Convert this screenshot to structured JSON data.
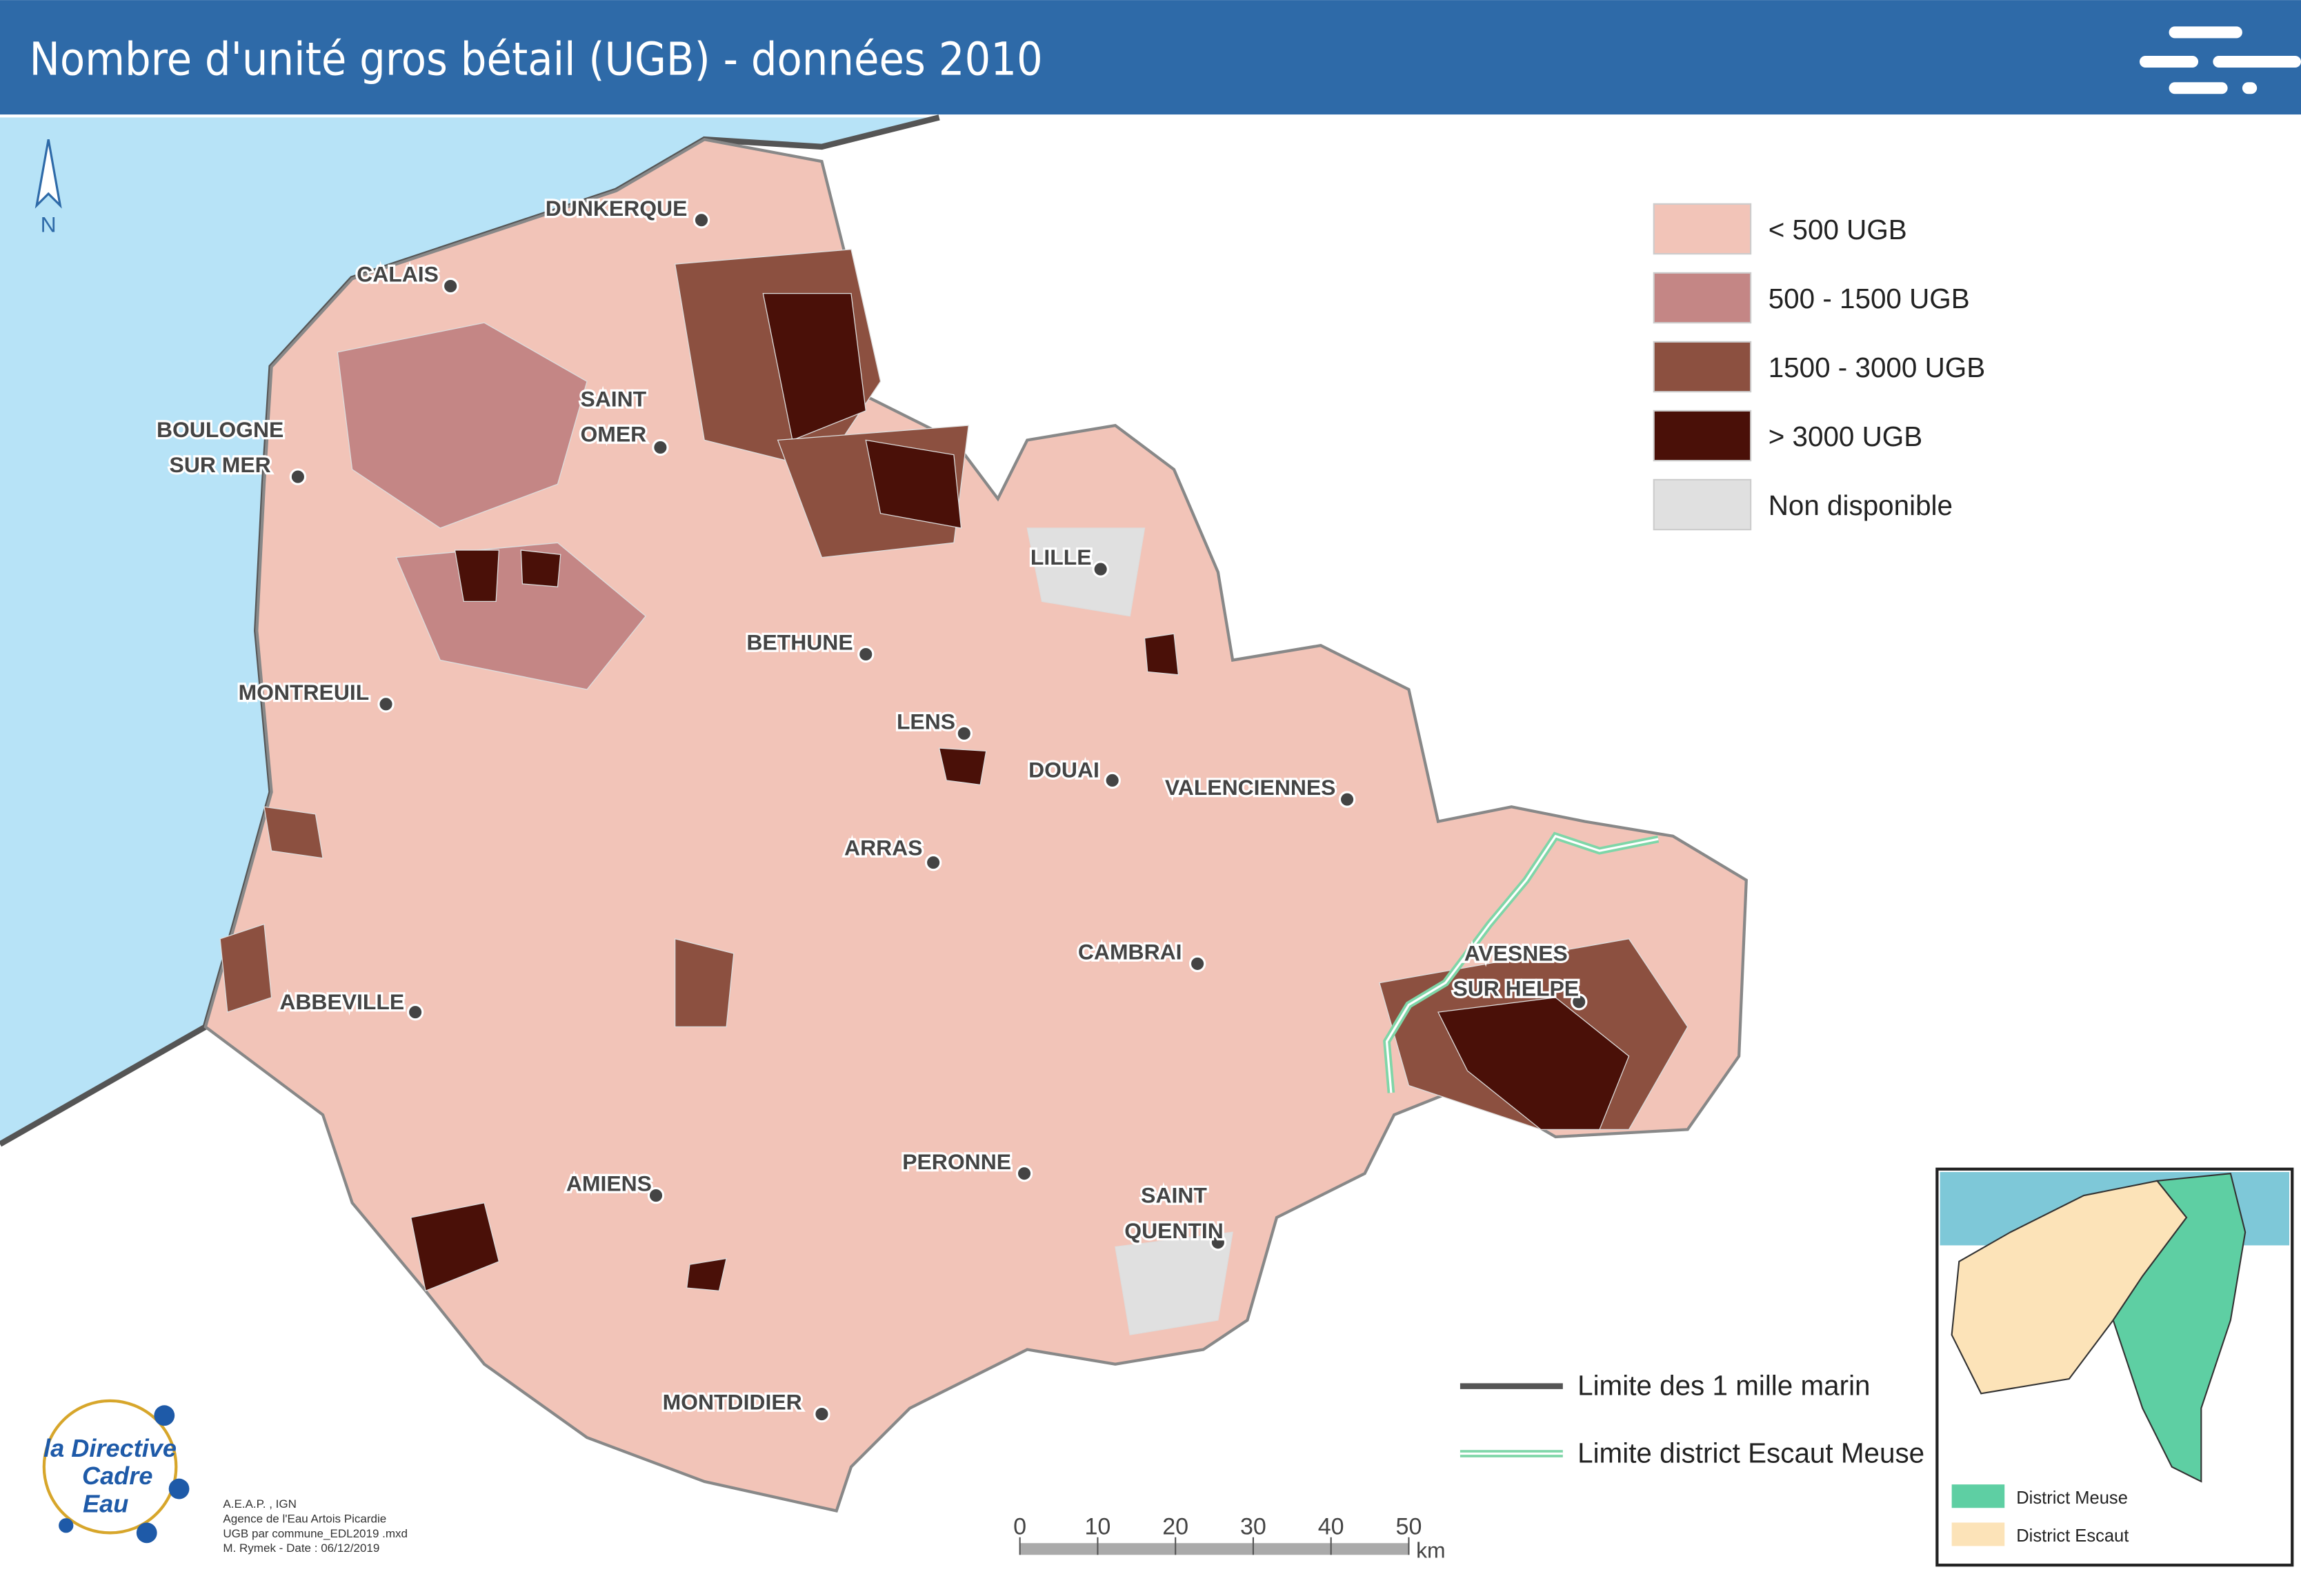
{
  "header": {
    "title": "Nombre d'unité gros bétail (UGB) - données 2010"
  },
  "north": "N",
  "legend": {
    "items": [
      "< 500 UGB",
      "500 - 1500 UGB",
      "1500 - 3000 UGB",
      "> 3000 UGB",
      "Non disponible"
    ],
    "colors": [
      "#f2c4b8",
      "#c48685",
      "#8c5040",
      "#4a1008",
      "#e0e0e0"
    ]
  },
  "cities": [
    [
      "DUNKERQUE"
    ],
    [
      "CALAIS"
    ],
    [
      "SAINT",
      "OMER"
    ],
    [
      "BOULOGNE",
      "SUR MER"
    ],
    [
      "LILLE"
    ],
    [
      "BETHUNE"
    ],
    [
      "MONTREUIL"
    ],
    [
      "LENS"
    ],
    [
      "DOUAI"
    ],
    [
      "VALENCIENNES"
    ],
    [
      "ARRAS"
    ],
    [
      "CAMBRAI"
    ],
    [
      "AVESNES",
      "SUR HELPE"
    ],
    [
      "ABBEVILLE"
    ],
    [
      "PERONNE"
    ],
    [
      "AMIENS"
    ],
    [
      "SAINT",
      "QUENTIN"
    ],
    [
      "MONTDIDIER"
    ]
  ],
  "lines_legend": [
    "Limite des 1 mille marin",
    "Limite district Escaut Meuse"
  ],
  "scalebar": {
    "ticks": [
      0,
      10,
      20,
      30,
      40,
      50
    ],
    "unit": "km"
  },
  "inset": {
    "legend": [
      "District Meuse",
      "District Escaut"
    ]
  },
  "credits": [
    "A.E.A.P. , IGN",
    "Agence de l'Eau Artois Picardie",
    "UGB par commune_EDL2019 .mxd",
    "M. Rymek - Date : 06/12/2019"
  ],
  "logo": [
    "la Directive",
    "Cadre",
    "Eau"
  ]
}
